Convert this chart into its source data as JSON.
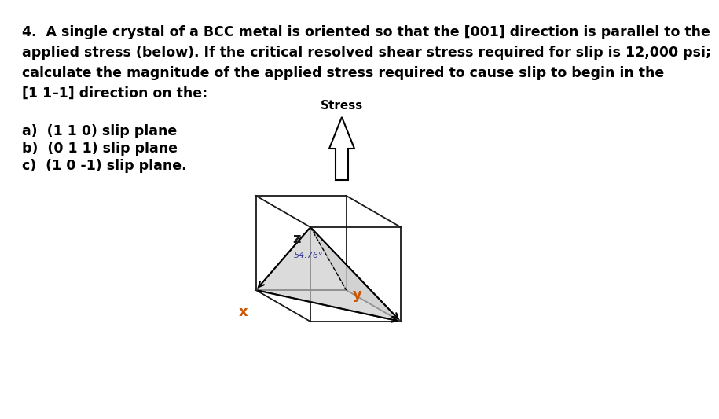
{
  "line1": "4.  A single crystal of a BCC metal is oriented so that the [001] direction is parallel to the",
  "line2": "applied stress (below). If the critical resolved shear stress required for slip is 12,000 psi;",
  "line3": "calculate the magnitude of the applied stress required to cause slip to begin in the",
  "line4": "[1 1–1] direction on the:",
  "sub_a": "a)  (1 1 0) slip plane",
  "sub_b": "b)  (0 1 1) slip plane",
  "sub_c": "c)  (1 0 -1) slip plane.",
  "angle_label": "54.76°",
  "stress_label": "Stress",
  "x_label": "x",
  "y_label": "y",
  "z_label": "z",
  "face_color": "#c8c8c8",
  "edge_color": "#1a1a1a",
  "axis_color_xy": "#cc5500",
  "axis_color_z": "#1a1a1a",
  "background_color": "#ffffff",
  "font_size_body": 12.5,
  "font_size_sub": 12.5,
  "font_size_axis": 13,
  "font_size_stress": 11,
  "font_size_angle": 8
}
